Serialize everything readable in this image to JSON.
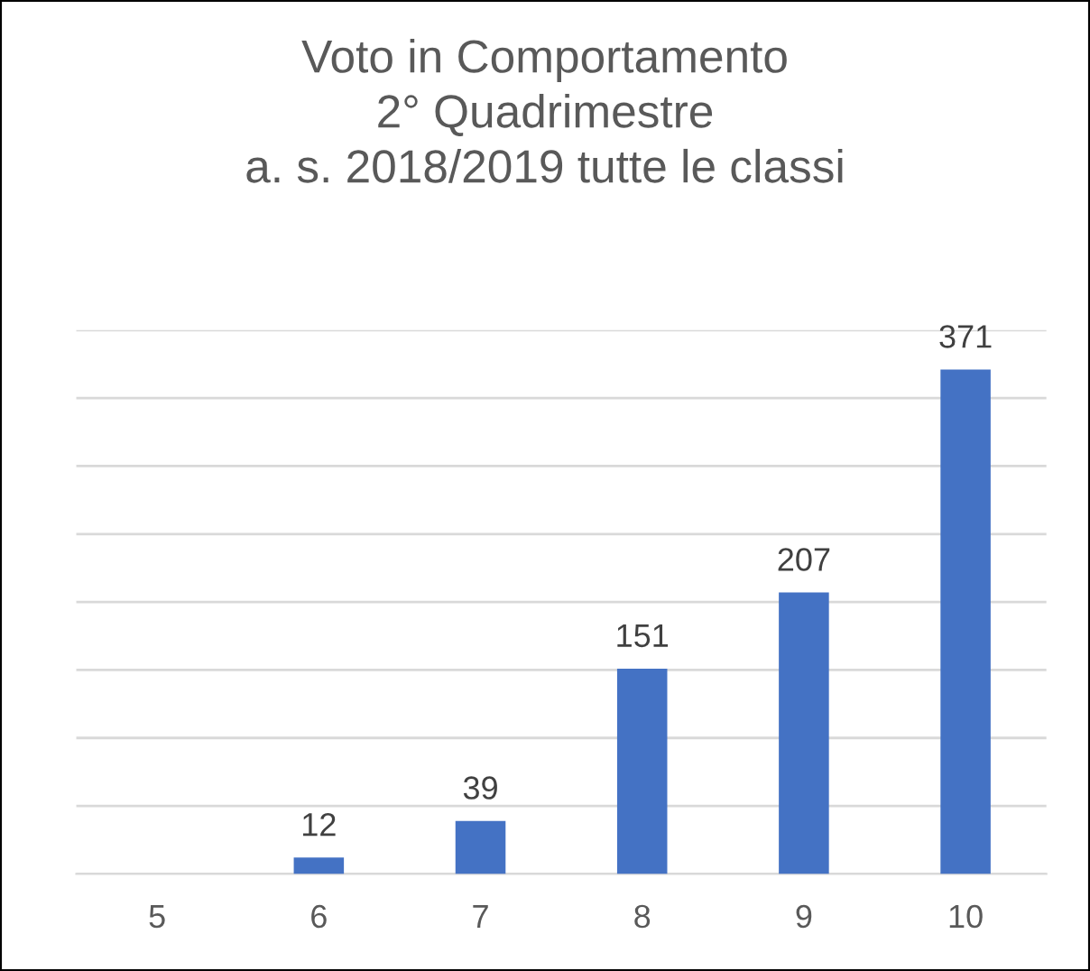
{
  "chart_data": {
    "type": "bar",
    "title": "Voto in Comportamento\n2° Quadrimestre\na. s. 2018/2019 tutte le classi",
    "categories": [
      "5",
      "6",
      "7",
      "8",
      "9",
      "10"
    ],
    "values": [
      0,
      12,
      39,
      151,
      207,
      371
    ],
    "value_labels": [
      null,
      "12",
      "39",
      "151",
      "207",
      "371"
    ],
    "color": "#4472c4",
    "ylim": [
      0,
      400
    ],
    "yticks": [
      {
        "value": 0,
        "label": null
      },
      {
        "value": 50,
        "label": null
      },
      {
        "value": 100,
        "label": null
      },
      {
        "value": 150,
        "label": null
      },
      {
        "value": 200,
        "label": null
      },
      {
        "value": 250,
        "label": null
      },
      {
        "value": 300,
        "label": null
      },
      {
        "value": 350,
        "label": null
      },
      {
        "value": 400,
        "label": null
      }
    ],
    "grid": "y",
    "tick_labels": "x",
    "legend": false
  }
}
